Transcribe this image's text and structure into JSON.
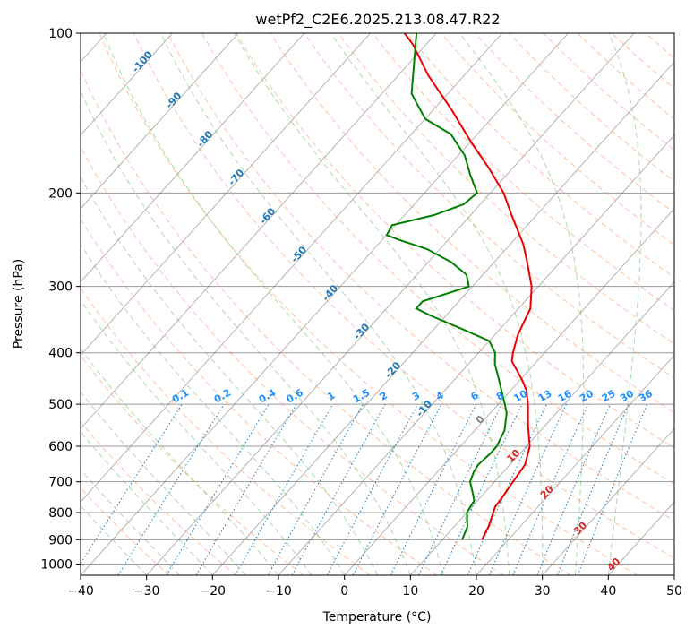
{
  "colors": {
    "temperature": "#ee0000",
    "dewpoint": "#008000",
    "dry_adiabat": "#ff9966",
    "moist_adiabat": "#66bb66",
    "mixing_ratio": "#1f77b4",
    "isotherm": "#555555",
    "isobar": "#999999",
    "isotherm_label": "#1f77b4",
    "mixing_label": "#1e90ff",
    "zero_label": "#7f7f7f",
    "warm_label": "#d62728"
  },
  "chart_data": {
    "type": "line",
    "title": "wetPf2_C2E6.2025.213.08.47.R22",
    "xlabel": "Temperature (°C)",
    "ylabel": "Pressure (hPa)",
    "xlim": [
      -40,
      50
    ],
    "ylim": [
      1050,
      100
    ],
    "y_scale": "log",
    "grid": true,
    "x_ticks": [
      "−40",
      "−30",
      "−20",
      "−10",
      "0",
      "10",
      "20",
      "30",
      "40",
      "50"
    ],
    "x_tick_values": [
      -40,
      -30,
      -20,
      -10,
      0,
      10,
      20,
      30,
      40,
      50
    ],
    "y_ticks": [
      "100",
      "200",
      "300",
      "400",
      "500",
      "600",
      "700",
      "800",
      "900",
      "1000"
    ],
    "y_tick_values": [
      100,
      200,
      300,
      400,
      500,
      600,
      700,
      800,
      900,
      1000
    ],
    "series": [
      {
        "role": "temperature",
        "pressure": [
          900,
          850,
          800,
          780,
          750,
          700,
          650,
          600,
          550,
          500,
          470,
          450,
          430,
          415,
          400,
          370,
          330,
          300,
          270,
          250,
          220,
          200,
          180,
          160,
          140,
          120,
          105,
          100
        ],
        "temperature": [
          16.0,
          15.2,
          14.0,
          13.5,
          13.3,
          12.8,
          12.3,
          10.5,
          7.5,
          4.5,
          2.3,
          0.3,
          -2.0,
          -3.8,
          -4.8,
          -6.5,
          -8.2,
          -11.0,
          -15.0,
          -18.0,
          -23.8,
          -28.0,
          -33.5,
          -40.0,
          -47.0,
          -55.5,
          -62.0,
          -64.8
        ]
      },
      {
        "role": "dewpoint",
        "pressure": [
          900,
          850,
          800,
          760,
          740,
          700,
          670,
          650,
          620,
          600,
          560,
          520,
          500,
          470,
          450,
          420,
          400,
          380,
          360,
          340,
          330,
          320,
          300,
          285,
          270,
          255,
          245,
          240,
          230,
          220,
          210,
          200,
          185,
          170,
          155,
          145,
          130,
          115,
          100
        ],
        "temperature": [
          13.0,
          12.0,
          10.0,
          9.5,
          8.5,
          6.3,
          5.5,
          5.2,
          5.5,
          5.5,
          4.5,
          2.5,
          1.0,
          -1.5,
          -3.2,
          -6.0,
          -7.5,
          -10.0,
          -16.0,
          -22.5,
          -25.5,
          -25.5,
          -20.5,
          -22.5,
          -26.5,
          -32.0,
          -37.5,
          -40.0,
          -40.5,
          -35.5,
          -32.5,
          -32.0,
          -35.5,
          -39.0,
          -44.0,
          -50.0,
          -55.5,
          -59.0,
          -63.0
        ]
      }
    ],
    "isotherm_labels": [
      "-100",
      "-90",
      "-80",
      "-70",
      "-60",
      "-50",
      "-40",
      "-30",
      "-20",
      "-10"
    ],
    "isotherm_label_values": [
      -100,
      -90,
      -80,
      -70,
      -60,
      -50,
      -40,
      -30,
      -20,
      -10
    ],
    "mixing_ratio_labels": [
      "0.1",
      "0.2",
      "0.4",
      "0.6",
      "1",
      "1.5",
      "2",
      "3",
      "4",
      "6",
      "8",
      "10",
      "13",
      "16",
      "20",
      "25",
      "30",
      "36"
    ],
    "mixing_ratio_values": [
      0.1,
      0.2,
      0.4,
      0.6,
      1,
      1.5,
      2,
      3,
      4,
      6,
      8,
      10,
      13,
      16,
      20,
      25,
      30,
      36
    ],
    "warm_isotherm_labels": [
      "0",
      "10",
      "20",
      "30",
      "40"
    ],
    "warm_isotherm_values": [
      0,
      10,
      20,
      30,
      40
    ]
  }
}
